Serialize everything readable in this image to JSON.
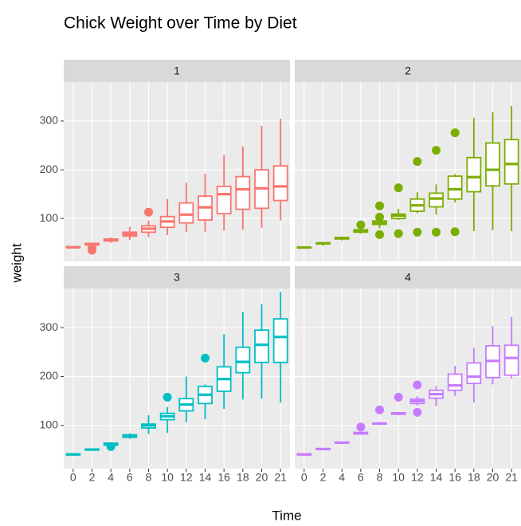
{
  "chart_data": {
    "type": "box",
    "title": "Chick Weight over Time by Diet",
    "x_label": "Time",
    "y_label": "weight",
    "categories": [
      "0",
      "2",
      "4",
      "6",
      "8",
      "10",
      "12",
      "14",
      "16",
      "18",
      "20",
      "21"
    ],
    "ylim": [
      12,
      380
    ],
    "yticks": [
      100,
      200,
      300
    ],
    "grid": true,
    "facets": [
      {
        "label": "1",
        "color": "#F8766D",
        "boxes": [
          {
            "low": 39,
            "q1": 41,
            "median": 41,
            "q3": 42,
            "high": 43,
            "outliers": []
          },
          {
            "low": 43,
            "q1": 46,
            "median": 47,
            "q3": 49,
            "high": 50,
            "outliers": [
              35,
              39
            ]
          },
          {
            "low": 50,
            "q1": 54,
            "median": 56,
            "q3": 58,
            "high": 61,
            "outliers": []
          },
          {
            "low": 56,
            "q1": 64,
            "median": 68,
            "q3": 72,
            "high": 83,
            "outliers": []
          },
          {
            "low": 62,
            "q1": 72,
            "median": 79,
            "q3": 85,
            "high": 96,
            "outliers": [
              113
            ]
          },
          {
            "low": 66,
            "q1": 82,
            "median": 94,
            "q3": 104,
            "high": 140,
            "outliers": []
          },
          {
            "low": 72,
            "q1": 91,
            "median": 108,
            "q3": 132,
            "high": 174,
            "outliers": []
          },
          {
            "low": 73,
            "q1": 97,
            "median": 123,
            "q3": 146,
            "high": 192,
            "outliers": []
          },
          {
            "low": 75,
            "q1": 110,
            "median": 150,
            "q3": 166,
            "high": 230,
            "outliers": []
          },
          {
            "low": 77,
            "q1": 119,
            "median": 160,
            "q3": 186,
            "high": 248,
            "outliers": []
          },
          {
            "low": 81,
            "q1": 121,
            "median": 162,
            "q3": 200,
            "high": 290,
            "outliers": []
          },
          {
            "low": 96,
            "q1": 137,
            "median": 166,
            "q3": 208,
            "high": 305,
            "outliers": []
          }
        ]
      },
      {
        "label": "2",
        "color": "#7CAE00",
        "boxes": [
          {
            "low": 39,
            "q1": 40,
            "median": 40.5,
            "q3": 41,
            "high": 42,
            "outliers": []
          },
          {
            "low": 44,
            "q1": 48,
            "median": 49,
            "q3": 50,
            "high": 52,
            "outliers": []
          },
          {
            "low": 55,
            "q1": 58,
            "median": 60,
            "q3": 61,
            "high": 63,
            "outliers": []
          },
          {
            "low": 69,
            "q1": 72,
            "median": 74,
            "q3": 77,
            "high": 80,
            "outliers": [
              87
            ]
          },
          {
            "low": 80,
            "q1": 88,
            "median": 91,
            "q3": 95,
            "high": 101,
            "outliers": [
              67,
              103,
              126
            ]
          },
          {
            "low": 97,
            "q1": 100,
            "median": 106,
            "q3": 109,
            "high": 120,
            "outliers": [
              69,
              163
            ]
          },
          {
            "low": 111,
            "q1": 115,
            "median": 127,
            "q3": 140,
            "high": 154,
            "outliers": [
              72,
              217
            ]
          },
          {
            "low": 108,
            "q1": 124,
            "median": 141,
            "q3": 152,
            "high": 170,
            "outliers": [
              72,
              240
            ]
          },
          {
            "low": 133,
            "q1": 140,
            "median": 160,
            "q3": 187,
            "high": 191,
            "outliers": [
              73,
              276
            ]
          },
          {
            "low": 74,
            "q1": 155,
            "median": 185,
            "q3": 225,
            "high": 307,
            "outliers": []
          },
          {
            "low": 76,
            "q1": 167,
            "median": 200,
            "q3": 255,
            "high": 318,
            "outliers": []
          },
          {
            "low": 74,
            "q1": 171,
            "median": 212,
            "q3": 262,
            "high": 331,
            "outliers": []
          }
        ]
      },
      {
        "label": "3",
        "color": "#00BFC4",
        "boxes": [
          {
            "low": 39,
            "q1": 40,
            "median": 41,
            "q3": 42,
            "high": 43,
            "outliers": []
          },
          {
            "low": 49,
            "q1": 50,
            "median": 51,
            "q3": 52,
            "high": 53,
            "outliers": []
          },
          {
            "low": 59,
            "q1": 60,
            "median": 62,
            "q3": 64,
            "high": 65,
            "outliers": [
              57
            ]
          },
          {
            "low": 73,
            "q1": 76,
            "median": 79,
            "q3": 81,
            "high": 84,
            "outliers": []
          },
          {
            "low": 83,
            "q1": 95,
            "median": 100,
            "q3": 103,
            "high": 121,
            "outliers": []
          },
          {
            "low": 85,
            "q1": 112,
            "median": 119,
            "q3": 125,
            "high": 138,
            "outliers": [
              158
            ]
          },
          {
            "low": 107,
            "q1": 130,
            "median": 143,
            "q3": 155,
            "high": 200,
            "outliers": []
          },
          {
            "low": 113,
            "q1": 145,
            "median": 163,
            "q3": 180,
            "high": 184,
            "outliers": [
              238
            ]
          },
          {
            "low": 134,
            "q1": 170,
            "median": 195,
            "q3": 220,
            "high": 287,
            "outliers": []
          },
          {
            "low": 153,
            "q1": 208,
            "median": 230,
            "q3": 260,
            "high": 332,
            "outliers": []
          },
          {
            "low": 155,
            "q1": 229,
            "median": 265,
            "q3": 295,
            "high": 348,
            "outliers": []
          },
          {
            "low": 147,
            "q1": 229,
            "median": 281,
            "q3": 318,
            "high": 373,
            "outliers": []
          }
        ]
      },
      {
        "label": "4",
        "color": "#C77CFF",
        "boxes": [
          {
            "low": 39,
            "q1": 40,
            "median": 41,
            "q3": 42,
            "high": 42,
            "outliers": []
          },
          {
            "low": 50,
            "q1": 51,
            "median": 52,
            "q3": 53,
            "high": 54,
            "outliers": []
          },
          {
            "low": 62,
            "q1": 64,
            "median": 65,
            "q3": 66,
            "high": 67,
            "outliers": []
          },
          {
            "low": 81,
            "q1": 83,
            "median": 84,
            "q3": 86,
            "high": 87,
            "outliers": [
              97
            ]
          },
          {
            "low": 101,
            "q1": 103,
            "median": 104,
            "q3": 105,
            "high": 108,
            "outliers": [
              132
            ]
          },
          {
            "low": 121,
            "q1": 123,
            "median": 125,
            "q3": 126,
            "high": 128,
            "outliers": [
              158
            ]
          },
          {
            "low": 141,
            "q1": 145,
            "median": 150,
            "q3": 154,
            "high": 160,
            "outliers": [
              127,
              183
            ]
          },
          {
            "low": 140,
            "q1": 156,
            "median": 164,
            "q3": 172,
            "high": 181,
            "outliers": []
          },
          {
            "low": 160,
            "q1": 172,
            "median": 182,
            "q3": 205,
            "high": 222,
            "outliers": []
          },
          {
            "low": 147,
            "q1": 186,
            "median": 200,
            "q3": 228,
            "high": 259,
            "outliers": []
          },
          {
            "low": 184,
            "q1": 198,
            "median": 232,
            "q3": 263,
            "high": 303,
            "outliers": []
          },
          {
            "low": 196,
            "q1": 203,
            "median": 238,
            "q3": 264,
            "high": 322,
            "outliers": []
          }
        ]
      }
    ]
  }
}
